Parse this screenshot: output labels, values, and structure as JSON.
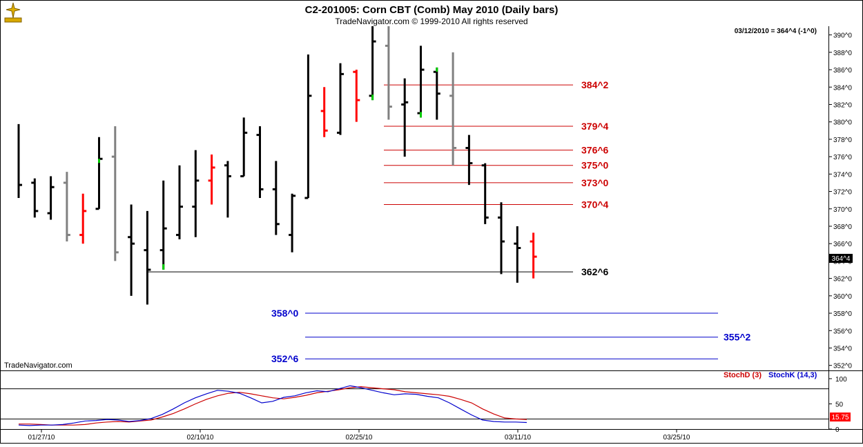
{
  "header": {
    "title": "C2-201005:  Corn CBT (Comb) May 2010  (Daily bars)",
    "subtitle": "TradeNavigator.com © 1999-2010 All rights reserved",
    "last_readout": "03/12/2010 = 364^4 (-1^0)",
    "watermark": "TradeNavigator.com",
    "last_price_tag": "364^4"
  },
  "colors": {
    "up": "#000000",
    "down": "#ff0000",
    "inside": "#808080",
    "green_dot": "#00cc00",
    "resistance": "#cc0000",
    "support_black": "#000000",
    "target": "#0000cc",
    "stoch_d": "#cc0000",
    "stoch_k": "#0000cc"
  },
  "chart_data": [
    {
      "type": "ohlc",
      "title": "C2-201005:  Corn CBT (Comb) May 2010  (Daily bars)",
      "y_unit": "cents/bu (eighths shown as ^)",
      "ylim": [
        351.5,
        391
      ],
      "y_ticks": [
        "352^0",
        "354^0",
        "356^0",
        "358^0",
        "360^0",
        "362^0",
        "364^0",
        "366^0",
        "368^0",
        "370^0",
        "372^0",
        "374^0",
        "376^0",
        "378^0",
        "380^0",
        "382^0",
        "384^0",
        "386^0",
        "388^0",
        "390^0"
      ],
      "x_ticks": [
        "01/27/10",
        "02/10/10",
        "02/25/10",
        "03/11/10",
        "03/25/10"
      ],
      "bars": [
        {
          "o": null,
          "h": 379.75,
          "l": 371.25,
          "c": 372.75,
          "color": "up"
        },
        {
          "o": 373.0,
          "h": 373.5,
          "l": 369.0,
          "c": 369.75,
          "color": "up"
        },
        {
          "o": 369.5,
          "h": 373.75,
          "l": 368.75,
          "c": 372.5,
          "color": "up"
        },
        {
          "o": 373.0,
          "h": 374.25,
          "l": 366.25,
          "c": 367.0,
          "color": "inside"
        },
        {
          "o": 367.0,
          "h": 371.75,
          "l": 366.0,
          "c": 369.75,
          "color": "down"
        },
        {
          "o": 370.0,
          "h": 378.25,
          "l": 370.0,
          "c": 375.75,
          "color": "up",
          "dot": "close"
        },
        {
          "o": 376.0,
          "h": 379.5,
          "l": 364.0,
          "c": 365.0,
          "color": "inside"
        },
        {
          "o": 366.75,
          "h": 370.5,
          "l": 360.0,
          "c": 366.0,
          "color": "up"
        },
        {
          "o": 365.25,
          "h": 369.75,
          "l": 359.0,
          "c": 363.0,
          "color": "up"
        },
        {
          "o": 365.25,
          "h": 373.25,
          "l": 363.0,
          "c": 367.75,
          "color": "up",
          "dot": "low"
        },
        {
          "o": 367.0,
          "h": 375.0,
          "l": 366.5,
          "c": 370.25,
          "color": "up"
        },
        {
          "o": 370.25,
          "h": 376.75,
          "l": 366.75,
          "c": 373.25,
          "color": "up"
        },
        {
          "o": 373.25,
          "h": 376.25,
          "l": 370.5,
          "c": 374.75,
          "color": "down"
        },
        {
          "o": 375.0,
          "h": 375.5,
          "l": 369.0,
          "c": 373.75,
          "color": "up"
        },
        {
          "o": 373.75,
          "h": 380.5,
          "l": 373.75,
          "c": 378.75,
          "color": "up"
        },
        {
          "o": 378.5,
          "h": 379.5,
          "l": 371.25,
          "c": 372.25,
          "color": "up"
        },
        {
          "o": 372.25,
          "h": 375.5,
          "l": 367.0,
          "c": 368.25,
          "color": "up"
        },
        {
          "o": 367.0,
          "h": 371.75,
          "l": 365.0,
          "c": 371.5,
          "color": "up"
        },
        {
          "o": 371.25,
          "h": 387.75,
          "l": 371.25,
          "c": 383.0,
          "color": "up"
        },
        {
          "o": 381.25,
          "h": 384.0,
          "l": 378.25,
          "c": 379.0,
          "color": "down"
        },
        {
          "o": 378.75,
          "h": 386.75,
          "l": 378.5,
          "c": 385.5,
          "color": "up"
        },
        {
          "o": 385.75,
          "h": 386.0,
          "l": 380.0,
          "c": 382.5,
          "color": "down"
        },
        {
          "o": 383.0,
          "h": 391.0,
          "l": 382.5,
          "c": 389.25,
          "color": "up",
          "dot": "low"
        },
        {
          "o": 388.75,
          "h": 391.0,
          "l": 380.25,
          "c": 381.75,
          "color": "inside"
        },
        {
          "o": 382.0,
          "h": 385.0,
          "l": 376.0,
          "c": 382.25,
          "color": "up"
        },
        {
          "o": 381.0,
          "h": 388.75,
          "l": 380.5,
          "c": 386.0,
          "color": "up",
          "dot": "low"
        },
        {
          "o": 385.75,
          "h": 386.25,
          "l": 380.25,
          "c": 383.25,
          "color": "up",
          "dot": "high"
        },
        {
          "o": 383.0,
          "h": 388.0,
          "l": 375.0,
          "c": 377.0,
          "color": "inside"
        },
        {
          "o": 377.0,
          "h": 378.5,
          "l": 372.75,
          "c": 375.25,
          "color": "up"
        },
        {
          "o": 375.0,
          "h": 375.25,
          "l": 368.25,
          "c": 369.0,
          "color": "up"
        },
        {
          "o": 369.0,
          "h": 370.75,
          "l": 362.5,
          "c": 366.25,
          "color": "up"
        },
        {
          "o": 366.0,
          "h": 368.0,
          "l": 361.5,
          "c": 365.5,
          "color": "up"
        },
        {
          "o": 366.25,
          "h": 367.25,
          "l": 362.0,
          "c": 364.5,
          "color": "down"
        }
      ],
      "levels": [
        {
          "label": "384^2",
          "value": 384.25,
          "color": "resistance"
        },
        {
          "label": "379^4",
          "value": 379.5,
          "color": "resistance"
        },
        {
          "label": "376^6",
          "value": 376.75,
          "color": "resistance"
        },
        {
          "label": "375^0",
          "value": 375.0,
          "color": "resistance"
        },
        {
          "label": "373^0",
          "value": 373.0,
          "color": "resistance"
        },
        {
          "label": "370^4",
          "value": 370.5,
          "color": "resistance"
        },
        {
          "label": "362^6",
          "value": 362.75,
          "color": "support_black"
        },
        {
          "label": "358^0",
          "value": 358.0,
          "color": "target"
        },
        {
          "label": "355^2",
          "value": 355.25,
          "color": "target"
        },
        {
          "label": "352^6",
          "value": 352.75,
          "color": "target"
        }
      ]
    },
    {
      "type": "line",
      "legend": [
        "StochD (3)",
        "StochK (14,3)"
      ],
      "ylim": [
        0,
        115
      ],
      "y_ticks": [
        "0",
        "50",
        "100"
      ],
      "reference_lines": [
        80,
        20
      ],
      "last_value_tag": "15.75",
      "series": [
        {
          "name": "StochD (3)",
          "color": "stoch_d",
          "values": [
            10,
            10,
            9,
            8,
            8,
            8,
            9,
            12,
            14,
            15,
            14,
            16,
            18,
            24,
            31,
            40,
            50,
            59,
            66,
            71,
            73,
            70,
            66,
            62,
            60,
            63,
            67,
            72,
            75,
            78,
            82,
            84,
            82,
            80,
            78,
            74,
            72,
            70,
            68,
            65,
            59,
            52,
            40,
            30,
            22,
            20,
            19
          ]
        },
        {
          "name": "StochK (14,3)",
          "color": "stoch_k",
          "values": [
            8,
            7,
            8,
            8,
            9,
            12,
            16,
            17,
            19,
            18,
            15,
            17,
            21,
            29,
            40,
            52,
            62,
            70,
            77,
            75,
            71,
            62,
            52,
            55,
            63,
            66,
            72,
            76,
            74,
            80,
            86,
            82,
            77,
            72,
            68,
            70,
            69,
            65,
            62,
            52,
            40,
            28,
            18,
            15,
            14,
            14,
            13
          ]
        }
      ]
    }
  ]
}
